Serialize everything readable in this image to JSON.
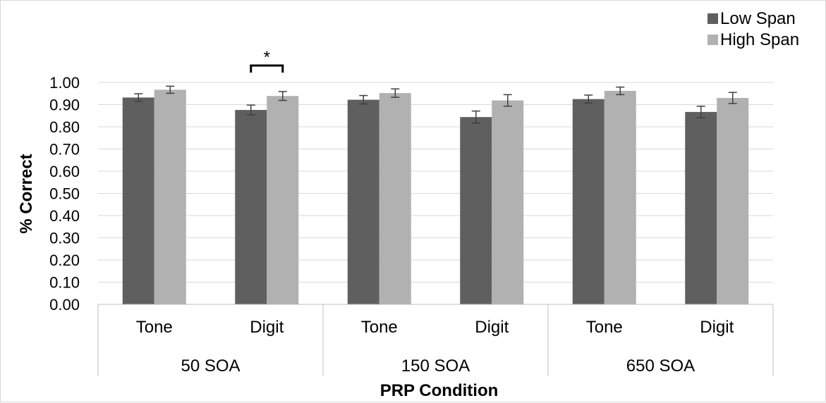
{
  "chart_data": {
    "type": "bar",
    "xlabel": "PRP Condition",
    "ylabel": "% Correct",
    "ylim": [
      0,
      1.0
    ],
    "y_ticks": [
      "0.00",
      "0.10",
      "0.20",
      "0.30",
      "0.40",
      "0.50",
      "0.60",
      "0.70",
      "0.80",
      "0.90",
      "1.00"
    ],
    "grid": true,
    "legend_position": "top-right",
    "groups": [
      "50 SOA",
      "150 SOA",
      "650 SOA"
    ],
    "categories": [
      "Tone",
      "Digit",
      "Tone",
      "Digit",
      "Tone",
      "Digit"
    ],
    "series": [
      {
        "name": "Low Span",
        "color": "#5f5f5f",
        "values": [
          0.932,
          0.876,
          0.922,
          0.844,
          0.925,
          0.867
        ],
        "errors": [
          0.017,
          0.022,
          0.019,
          0.027,
          0.018,
          0.026
        ]
      },
      {
        "name": "High Span",
        "color": "#b1b1b1",
        "values": [
          0.967,
          0.939,
          0.952,
          0.919,
          0.962,
          0.93
        ],
        "errors": [
          0.016,
          0.02,
          0.019,
          0.026,
          0.017,
          0.025
        ]
      }
    ],
    "annotations": [
      {
        "text": "*",
        "category_index": 1
      }
    ]
  }
}
